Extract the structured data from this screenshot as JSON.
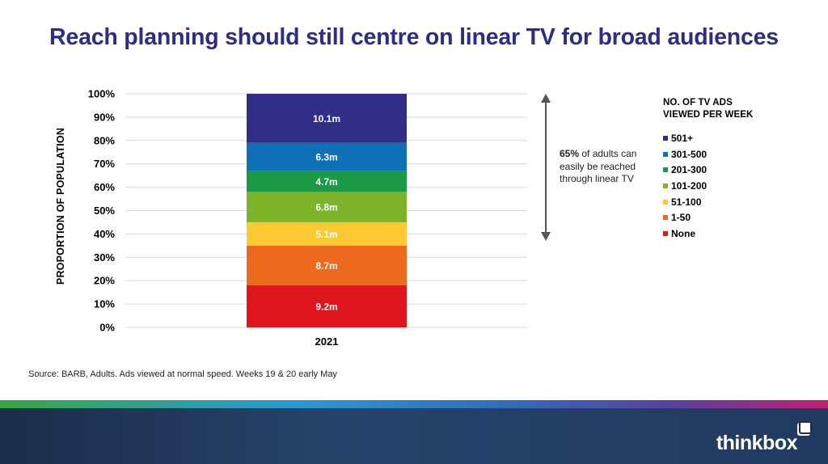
{
  "title": "Reach planning should still centre on linear TV for broad audiences",
  "source": "Source: BARB, Adults. Ads viewed at normal speed. Weeks 19 & 20 early May",
  "annotation": {
    "highlight": "65%",
    "text": " of adults can easily be reached through linear TV"
  },
  "legend": {
    "title_line1": "NO. OF TV ADS",
    "title_line2": "VIEWED PER WEEK"
  },
  "logo": "thinkbox",
  "chart_data": {
    "type": "bar",
    "stacked": true,
    "categories": [
      "2021"
    ],
    "ylabel": "PROPORTION OF POPULATION",
    "xlabel": "",
    "ylim": [
      0,
      100
    ],
    "yticks": [
      "0%",
      "10%",
      "20%",
      "30%",
      "40%",
      "50%",
      "60%",
      "70%",
      "80%",
      "90%",
      "100%"
    ],
    "grid": true,
    "legend_position": "right",
    "series": [
      {
        "name": "None",
        "values": [
          18
        ],
        "label": "9.2m",
        "color": "#e0161f"
      },
      {
        "name": "1-50",
        "values": [
          17
        ],
        "label": "8.7m",
        "color": "#eb6a1f"
      },
      {
        "name": "51-100",
        "values": [
          10
        ],
        "label": "5.1m",
        "color": "#fbc931"
      },
      {
        "name": "101-200",
        "values": [
          13
        ],
        "label": "6.8m",
        "color": "#7db22b"
      },
      {
        "name": "201-300",
        "values": [
          9
        ],
        "label": "4.7m",
        "color": "#1b9a46"
      },
      {
        "name": "301-500",
        "values": [
          12
        ],
        "label": "6.3m",
        "color": "#0f6fb7"
      },
      {
        "name": "501+",
        "values": [
          21
        ],
        "label": "10.1m",
        "color": "#312e88"
      }
    ]
  }
}
